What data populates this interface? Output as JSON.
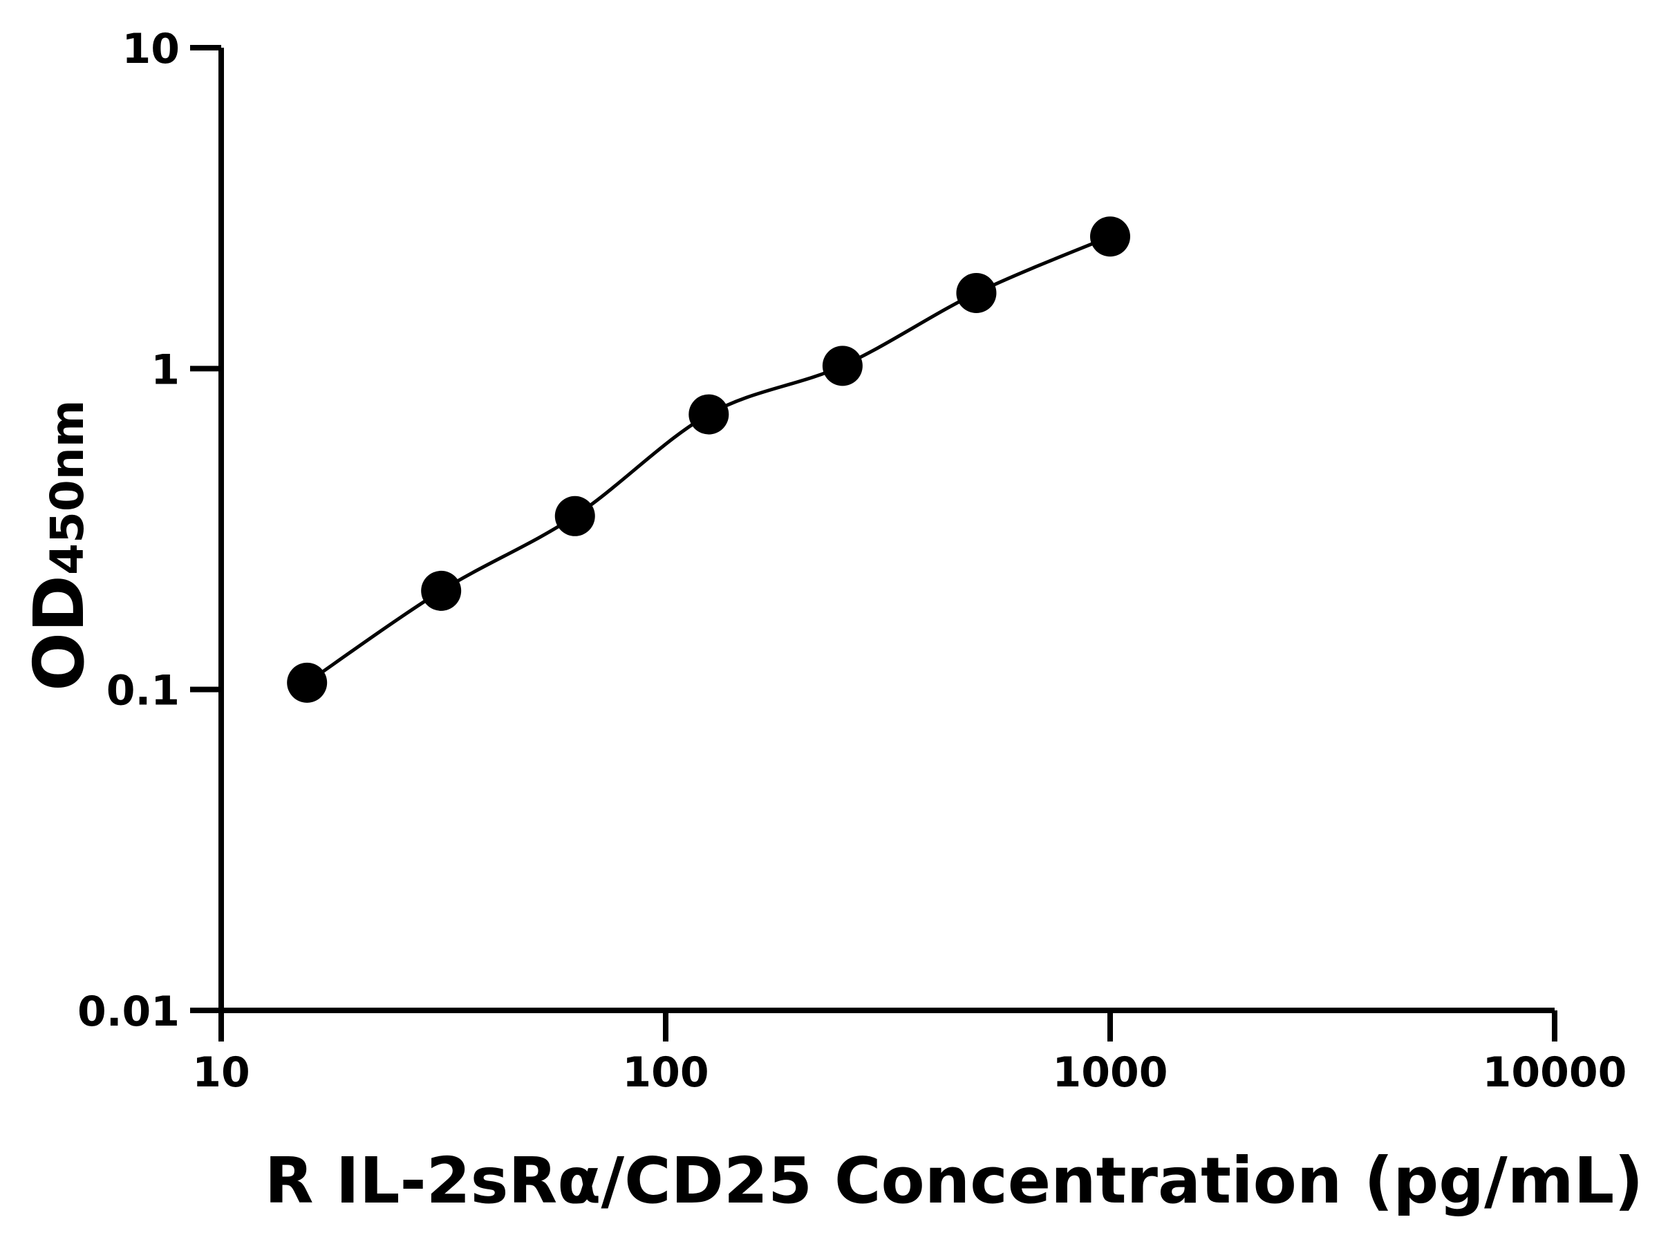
{
  "chart_data": {
    "type": "line",
    "title": "",
    "xlabel": "R IL-2sRα/CD25 Concentration (pg/mL)",
    "ylabel_main": "OD",
    "ylabel_sub": "450nm",
    "x_scale": "log",
    "y_scale": "log",
    "xlim": [
      10,
      10000
    ],
    "ylim": [
      0.01,
      10
    ],
    "x_ticks": [
      "10",
      "100",
      "1000",
      "10000"
    ],
    "y_ticks": [
      "0.01",
      "0.1",
      "1",
      "10"
    ],
    "grid": false,
    "series": [
      {
        "x": [
          15.6,
          31.25,
          62.5,
          125,
          250,
          500,
          1000
        ],
        "y": [
          0.105,
          0.203,
          0.347,
          0.72,
          1.02,
          1.72,
          2.58
        ],
        "marker": "circle",
        "color": "#000000",
        "fit_line": true
      }
    ]
  }
}
